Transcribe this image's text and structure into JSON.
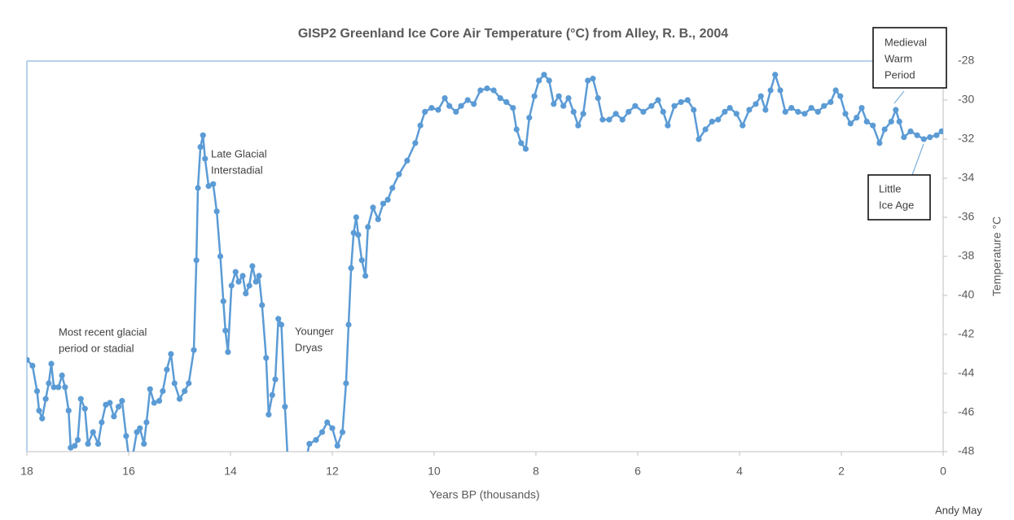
{
  "chart_data": {
    "type": "line",
    "title": "GISP2 Greenland Ice Core Air Temperature (°C) from Alley, R. B., 2004",
    "x_label": "Years BP (thousands)",
    "y_label": "Temperature °C",
    "credit": "Andy May",
    "xlim": [
      18,
      0
    ],
    "xticks": [
      18,
      16,
      14,
      12,
      10,
      8,
      6,
      4,
      2,
      0
    ],
    "ylim": [
      -48,
      -28
    ],
    "yticks": [
      -48,
      -46,
      -44,
      -42,
      -40,
      -38,
      -36,
      -34,
      -32,
      -30,
      -28
    ],
    "grid": false,
    "y_axis_side": "right",
    "annotations": [
      {
        "lines": [
          "Most recent glacial",
          "period or stadial"
        ],
        "boxed": false
      },
      {
        "lines": [
          "Late Glacial",
          "Interstadial"
        ],
        "boxed": false
      },
      {
        "lines": [
          "Younger",
          "Dryas"
        ],
        "boxed": false
      },
      {
        "lines": [
          "Medieval",
          "Warm",
          "Period"
        ],
        "boxed": true
      },
      {
        "lines": [
          "Little",
          "Ice Age"
        ],
        "boxed": true
      }
    ],
    "series": [
      {
        "name": "GISP2",
        "color": "#5b9bd5",
        "x": [
          18.0,
          17.89,
          17.8,
          17.76,
          17.7,
          17.63,
          17.57,
          17.52,
          17.47,
          17.38,
          17.31,
          17.25,
          17.18,
          17.14,
          17.06,
          17.0,
          16.94,
          16.86,
          16.8,
          16.7,
          16.6,
          16.53,
          16.45,
          16.37,
          16.29,
          16.2,
          16.13,
          16.05,
          16.0,
          15.92,
          15.84,
          15.78,
          15.7,
          15.65,
          15.58,
          15.5,
          15.4,
          15.33,
          15.25,
          15.17,
          15.1,
          15.0,
          14.9,
          14.82,
          14.72,
          14.67,
          14.64,
          14.59,
          14.54,
          14.5,
          14.43,
          14.34,
          14.27,
          14.2,
          14.14,
          14.1,
          14.05,
          13.98,
          13.9,
          13.84,
          13.76,
          13.7,
          13.63,
          13.57,
          13.5,
          13.44,
          13.38,
          13.3,
          13.25,
          13.18,
          13.12,
          13.06,
          13.0,
          12.93,
          12.88,
          12.64,
          12.45,
          12.32,
          12.2,
          12.1,
          12.0,
          11.9,
          11.8,
          11.73,
          11.68,
          11.63,
          11.58,
          11.53,
          11.49,
          11.42,
          11.35,
          11.3,
          11.2,
          11.1,
          11.0,
          10.91,
          10.82,
          10.69,
          10.53,
          10.37,
          10.27,
          10.18,
          10.05,
          9.92,
          9.79,
          9.7,
          9.57,
          9.47,
          9.34,
          9.22,
          9.09,
          8.96,
          8.83,
          8.7,
          8.58,
          8.45,
          8.38,
          8.29,
          8.2,
          8.13,
          8.03,
          7.94,
          7.84,
          7.74,
          7.65,
          7.55,
          7.46,
          7.36,
          7.26,
          7.17,
          7.07,
          6.98,
          6.88,
          6.78,
          6.69,
          6.56,
          6.43,
          6.3,
          6.18,
          6.05,
          5.89,
          5.73,
          5.6,
          5.5,
          5.41,
          5.28,
          5.15,
          5.02,
          4.9,
          4.8,
          4.67,
          4.54,
          4.42,
          4.29,
          4.19,
          4.06,
          3.94,
          3.81,
          3.68,
          3.58,
          3.49,
          3.39,
          3.3,
          3.2,
          3.1,
          2.98,
          2.85,
          2.72,
          2.59,
          2.46,
          2.34,
          2.21,
          2.11,
          2.02,
          1.92,
          1.82,
          1.7,
          1.6,
          1.5,
          1.38,
          1.25,
          1.15,
          1.02,
          0.93,
          0.86,
          0.77,
          0.64,
          0.51,
          0.38,
          0.26,
          0.13,
          0.03
        ],
        "values": [
          -43.3,
          -43.6,
          -44.9,
          -45.9,
          -46.3,
          -45.3,
          -44.5,
          -43.5,
          -44.7,
          -44.7,
          -44.1,
          -44.7,
          -45.9,
          -47.8,
          -47.7,
          -47.4,
          -45.3,
          -45.8,
          -47.6,
          -47.0,
          -47.6,
          -46.5,
          -45.6,
          -45.5,
          -46.2,
          -45.7,
          -45.4,
          -47.2,
          -48.2,
          -48.2,
          -47.0,
          -46.8,
          -47.6,
          -46.5,
          -44.8,
          -45.5,
          -45.4,
          -44.9,
          -43.8,
          -43.0,
          -44.5,
          -45.3,
          -44.9,
          -44.5,
          -42.8,
          -38.2,
          -34.5,
          -32.4,
          -31.8,
          -33.0,
          -34.4,
          -34.3,
          -35.7,
          -38.0,
          -40.3,
          -41.8,
          -42.9,
          -39.5,
          -38.8,
          -39.3,
          -39.0,
          -39.9,
          -39.5,
          -38.5,
          -39.3,
          -39.0,
          -40.5,
          -43.2,
          -46.1,
          -45.1,
          -44.3,
          -41.2,
          -41.5,
          -45.7,
          -48.2,
          -50.0,
          -47.6,
          -47.4,
          -47.0,
          -46.5,
          -46.8,
          -47.7,
          -47.0,
          -44.5,
          -41.5,
          -38.6,
          -36.8,
          -36.0,
          -36.9,
          -38.2,
          -39.0,
          -36.5,
          -35.5,
          -36.1,
          -35.3,
          -35.1,
          -34.5,
          -33.8,
          -33.1,
          -32.2,
          -31.3,
          -30.6,
          -30.4,
          -30.5,
          -29.9,
          -30.3,
          -30.6,
          -30.3,
          -30.0,
          -30.2,
          -29.5,
          -29.4,
          -29.5,
          -29.9,
          -30.1,
          -30.4,
          -31.5,
          -32.2,
          -32.5,
          -30.9,
          -29.8,
          -29.0,
          -28.7,
          -29.0,
          -30.2,
          -29.8,
          -30.3,
          -29.9,
          -30.6,
          -31.3,
          -30.7,
          -29.0,
          -28.9,
          -29.9,
          -31.0,
          -31.0,
          -30.7,
          -31.0,
          -30.6,
          -30.3,
          -30.6,
          -30.3,
          -30.0,
          -30.6,
          -31.3,
          -30.3,
          -30.1,
          -30.0,
          -30.5,
          -32.0,
          -31.5,
          -31.1,
          -31.0,
          -30.6,
          -30.4,
          -30.7,
          -31.3,
          -30.5,
          -30.2,
          -29.8,
          -30.5,
          -29.5,
          -28.7,
          -29.5,
          -30.6,
          -30.4,
          -30.6,
          -30.7,
          -30.4,
          -30.6,
          -30.3,
          -30.1,
          -29.5,
          -29.8,
          -30.7,
          -31.2,
          -30.9,
          -30.4,
          -31.1,
          -31.3,
          -32.2,
          -31.5,
          -31.1,
          -30.5,
          -31.1,
          -31.9,
          -31.6,
          -31.8,
          -32.0,
          -31.9,
          -31.8,
          -31.6
        ]
      }
    ]
  }
}
